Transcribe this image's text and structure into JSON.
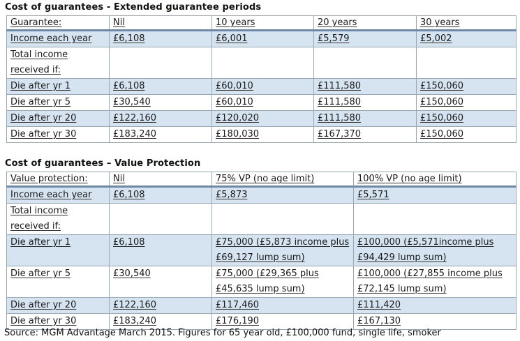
{
  "table1": {
    "title": "Cost of guarantees - Extended guarantee periods",
    "headers": [
      "Guarantee:",
      "Nil",
      "10 years",
      "20 years",
      "30 years"
    ],
    "rows": [
      [
        "Income each year",
        "£6,108",
        "£6,001",
        "£5,579",
        "£5,002"
      ],
      [
        "Total income received if:",
        "",
        "",
        "",
        ""
      ],
      [
        "Die after yr 1",
        "£6,108",
        "£60,010",
        "£111,580",
        "£150,060"
      ],
      [
        "Die after yr 5",
        "£30,540",
        "£60,010",
        "£111,580",
        "£150,060"
      ],
      [
        "Die after yr 20",
        "£122,160",
        "£120,020",
        "£111,580",
        "£150,060"
      ],
      [
        "Die after yr 30",
        "£183,240",
        "£180,030",
        "£167,370",
        "£150,060"
      ]
    ]
  },
  "table2": {
    "title": "Cost of guarantees – Value Protection",
    "headers": [
      "Value protection:",
      "Nil",
      "75% VP (no age limit)",
      "100% VP (no age limit)"
    ],
    "rows": [
      [
        "Income each year",
        "£6,108",
        "£5,873",
        "£5,571"
      ],
      [
        "Total income received if:",
        "",
        "",
        ""
      ],
      [
        "Die after yr 1",
        "£6,108",
        "£75,000 (£5,873 income plus £69,127 lump sum)",
        "£100,000 (£5,571income plus £94,429 lump sum)"
      ],
      [
        "Die after yr 5",
        "£30,540",
        "£75,000 (£29,365 plus £45,635 lump sum)",
        "£100,000 (£27,855 income plus £72,145 lump sum)"
      ],
      [
        "Die after yr 20",
        "£122,160",
        "£117,460",
        "£111,420"
      ],
      [
        "Die after yr 30",
        "£183,240",
        "£176,190",
        "£167,130"
      ]
    ]
  },
  "source": "Source: MGM Advantage March 2015. Figures for 65 year old, £100,000 fund, single life, smoker"
}
